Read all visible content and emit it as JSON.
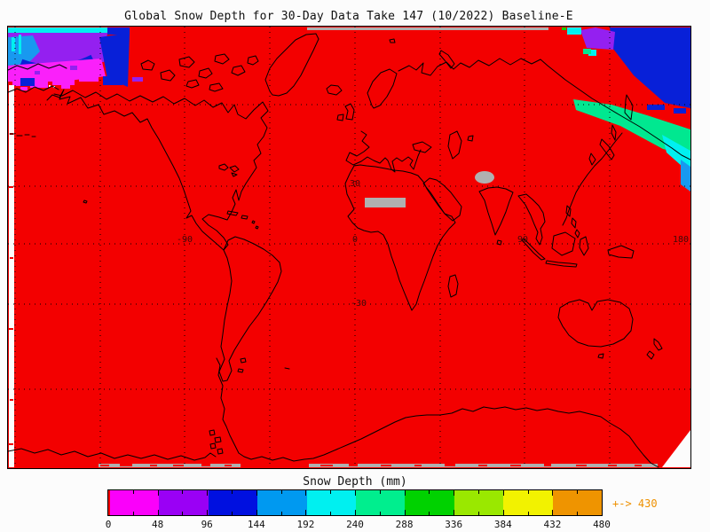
{
  "title": "Global Snow Depth for 30-Day Data Take 147 (10/2022) Baseline-E",
  "colorbar": {
    "title": "Snow Depth (mm)",
    "tick_labels": [
      "0",
      "48",
      "96",
      "144",
      "192",
      "240",
      "288",
      "336",
      "384",
      "432",
      "480"
    ],
    "segment_colors": [
      "#fa00fa",
      "#9a00f5",
      "#0010e0",
      "#0099f0",
      "#00f0f0",
      "#00ee8e",
      "#00d200",
      "#9ae800",
      "#f2f200",
      "#ef9400"
    ],
    "zero_color": "#f30000",
    "max_annotation": "+-> 430",
    "annotation_color": "#ee9000"
  },
  "map": {
    "background_color": "#f30000",
    "no_data_color": "#b0b0b0",
    "coastline_color": "#000000",
    "grid_labels": {
      "lat30": "30",
      "latm30": "-30",
      "lonm90": "-90",
      "lon0": "0",
      "lon90": "90",
      "lon180": "180"
    }
  },
  "chart_data": {
    "type": "heatmap",
    "title": "Global Snow Depth for 30-Day Data Take 147 (10/2022) Baseline-E",
    "legend_title": "Snow Depth (mm)",
    "colorbar_ticks_mm": [
      0,
      48,
      96,
      144,
      192,
      240,
      288,
      336,
      384,
      432,
      480
    ],
    "colorbar_colors": [
      "#fa00fa",
      "#9a00f5",
      "#0010e0",
      "#0099f0",
      "#00f0f0",
      "#00ee8e",
      "#00d200",
      "#9ae800",
      "#f2f200",
      "#ef9400"
    ],
    "zero_value_color": "#f30000",
    "max_observed_value_mm": 430,
    "graticule": {
      "lon_labels_deg": [
        -90,
        0,
        90,
        180
      ],
      "lat_labels_deg": [
        30,
        -30
      ],
      "lon_spacing_deg": 45,
      "lat_spacing_deg": 30,
      "style": "dotted black"
    },
    "observations": [
      {
        "region": "Eastern Siberia / Chukotka / Alaska (map top-left)",
        "snow_depth_mm": "0-240; bands increase northward: magenta (0-48), purple (48-96), blue (96-144), light blue (144-192), cyan (192-240)"
      },
      {
        "region": "Northern Siberia Arctic coast (map top-right)",
        "snow_depth_mm": "0-288; blue interior, spring-green and cyan coastal bands"
      },
      {
        "region": "Sahara central band",
        "value": "no data (gray bar)"
      },
      {
        "region": "Tibetan Plateau",
        "value": "no data (gray blob)"
      },
      {
        "region": "Antarctica southern edge and Arctic top strip",
        "value": "no data (gray)"
      },
      {
        "region": "Remainder of globe",
        "snow_depth_mm": 0
      }
    ]
  }
}
